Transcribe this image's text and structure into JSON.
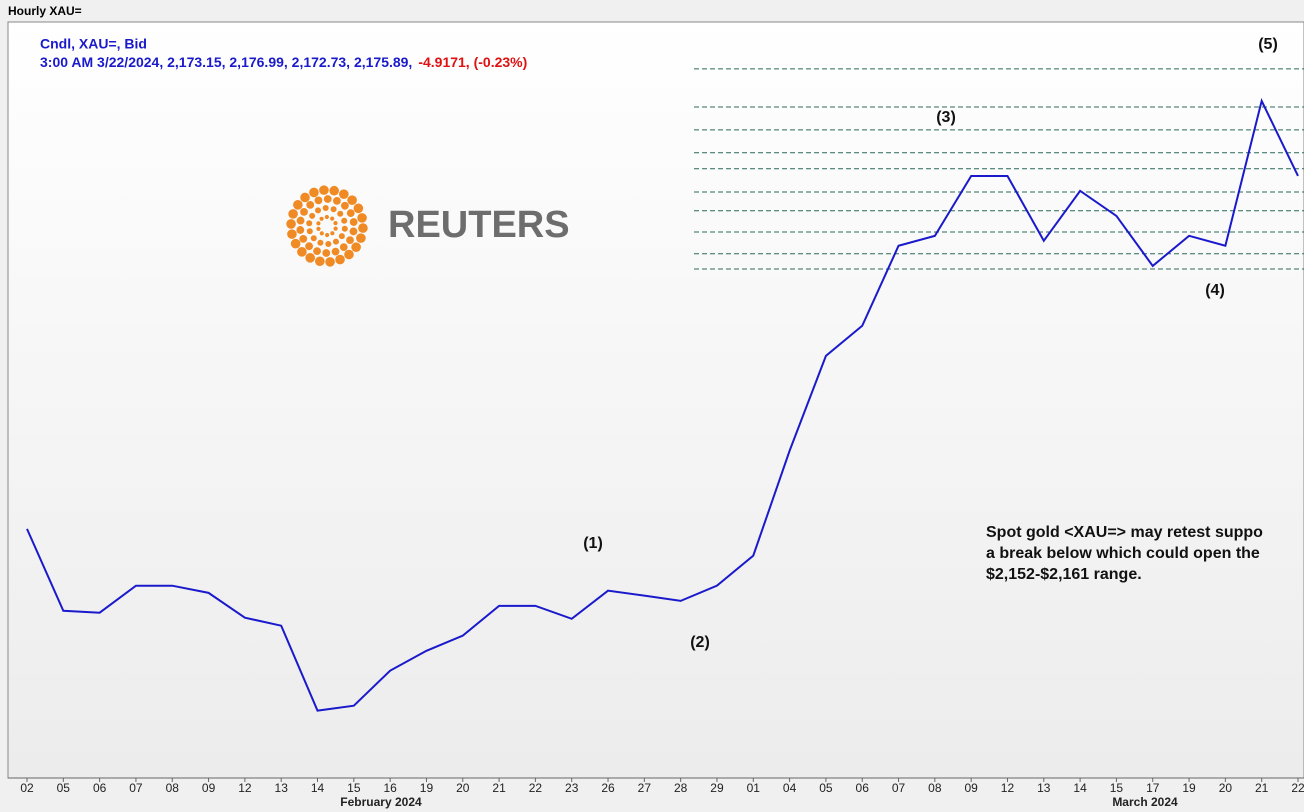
{
  "title": "Hourly XAU=",
  "header": {
    "line1": "Cndl, XAU=, Bid",
    "line2": "3:00 AM 3/22/2024, 2,173.15, 2,176.99, 2,172.73, 2,175.89,",
    "change": "-4.9171, (-0.23%)"
  },
  "logo": "REUTERS",
  "chart_data": {
    "type": "line",
    "categories": [
      "02",
      "05",
      "06",
      "07",
      "08",
      "09",
      "12",
      "13",
      "14",
      "15",
      "16",
      "19",
      "20",
      "21",
      "22",
      "23",
      "26",
      "27",
      "28",
      "29",
      "01",
      "04",
      "05",
      "06",
      "07",
      "08",
      "09",
      "12",
      "13",
      "14",
      "15",
      "17",
      "19",
      "20",
      "21",
      "22"
    ],
    "values": [
      2055.3,
      2025.6,
      2024.9,
      2034.7,
      2034.7,
      2032.1,
      2023.1,
      2020.2,
      1989.4,
      1991.2,
      2003.9,
      2011.1,
      2016.6,
      2027.4,
      2027.4,
      2022.7,
      2032.9,
      2031.1,
      2029.2,
      2034.7,
      2045.6,
      2083.6,
      2118.0,
      2128.9,
      2157.9,
      2161.5,
      2183.2,
      2183.2,
      2159.7,
      2177.8,
      2168.7,
      2150.6,
      2161.5,
      2157.9,
      2210.4,
      2183.2
    ],
    "color": "#1a1acc",
    "ylim": [
      1965,
      2239
    ],
    "levels": [
      2222.0,
      2208.2,
      2199.9,
      2191.6,
      2185.8,
      2177.4,
      2170.6,
      2162.9,
      2155.0,
      2149.5
    ],
    "months": [
      "February 2024",
      "March 2024"
    ],
    "waves": [
      "(1)",
      "(2)",
      "(3)",
      "(4)",
      "(5)"
    ],
    "annotation": [
      "Spot gold <XAU=> may retest suppo",
      "a break below which could open the",
      "$2,152-$2,161 range."
    ]
  }
}
